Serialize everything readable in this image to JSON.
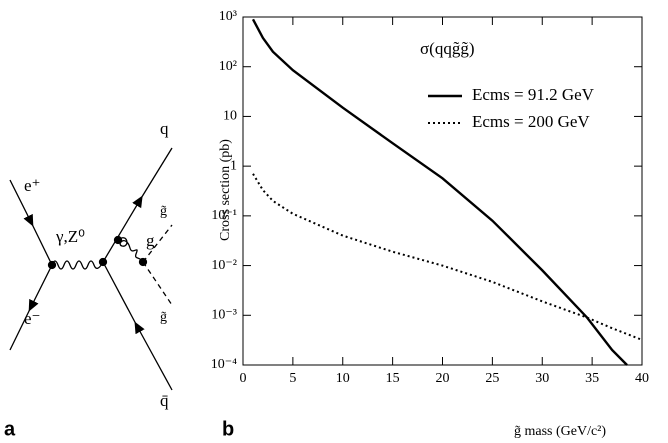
{
  "diagram": {
    "e_plus": "e⁺",
    "e_minus": "e⁻",
    "boson": "γ,Z⁰",
    "gluon": "g",
    "quark": "q",
    "antiquark": "q̄",
    "gluino_top": "g̃",
    "gluino_bottom": "g̃",
    "panel": "a"
  },
  "panel_b": "b",
  "chart_data": {
    "type": "line",
    "title": "σ(qqg̃g̃)",
    "x_label": "g̃ mass (GeV/c²)",
    "y_label": "Cross section (pb)",
    "log_y": true,
    "x": [
      1,
      2,
      3,
      5,
      10,
      15,
      20,
      25,
      30,
      34.5,
      37,
      38.5,
      40
    ],
    "series": [
      {
        "name": "Ecms = 91.2 GeV",
        "color": "#000000",
        "dash": "solid",
        "values": [
          900,
          380,
          200,
          85,
          15,
          2.9,
          0.57,
          0.08,
          0.008,
          0.0009,
          0.0002,
          0.0001,
          null
        ]
      },
      {
        "name": "Ecms = 200 GeV",
        "color": "#000000",
        "dash": "dotted",
        "values": [
          0.7,
          0.33,
          0.2,
          0.11,
          0.04,
          0.019,
          0.01,
          0.0047,
          0.0019,
          0.0009,
          0.00055,
          0.00042,
          0.00032
        ]
      }
    ],
    "xlim": [
      0,
      40
    ],
    "xticks": [
      0,
      5,
      10,
      15,
      20,
      25,
      30,
      35,
      40
    ],
    "ylim": [
      0.0001,
      1000
    ],
    "yticks": [
      {
        "value": 0.0001,
        "label": "10⁻⁴"
      },
      {
        "value": 0.001,
        "label": "10⁻³"
      },
      {
        "value": 0.01,
        "label": "10⁻²"
      },
      {
        "value": 0.1,
        "label": "10⁻¹"
      },
      1,
      10,
      {
        "value": 100,
        "label": "10²"
      },
      {
        "value": 1000,
        "label": "10³"
      }
    ]
  }
}
